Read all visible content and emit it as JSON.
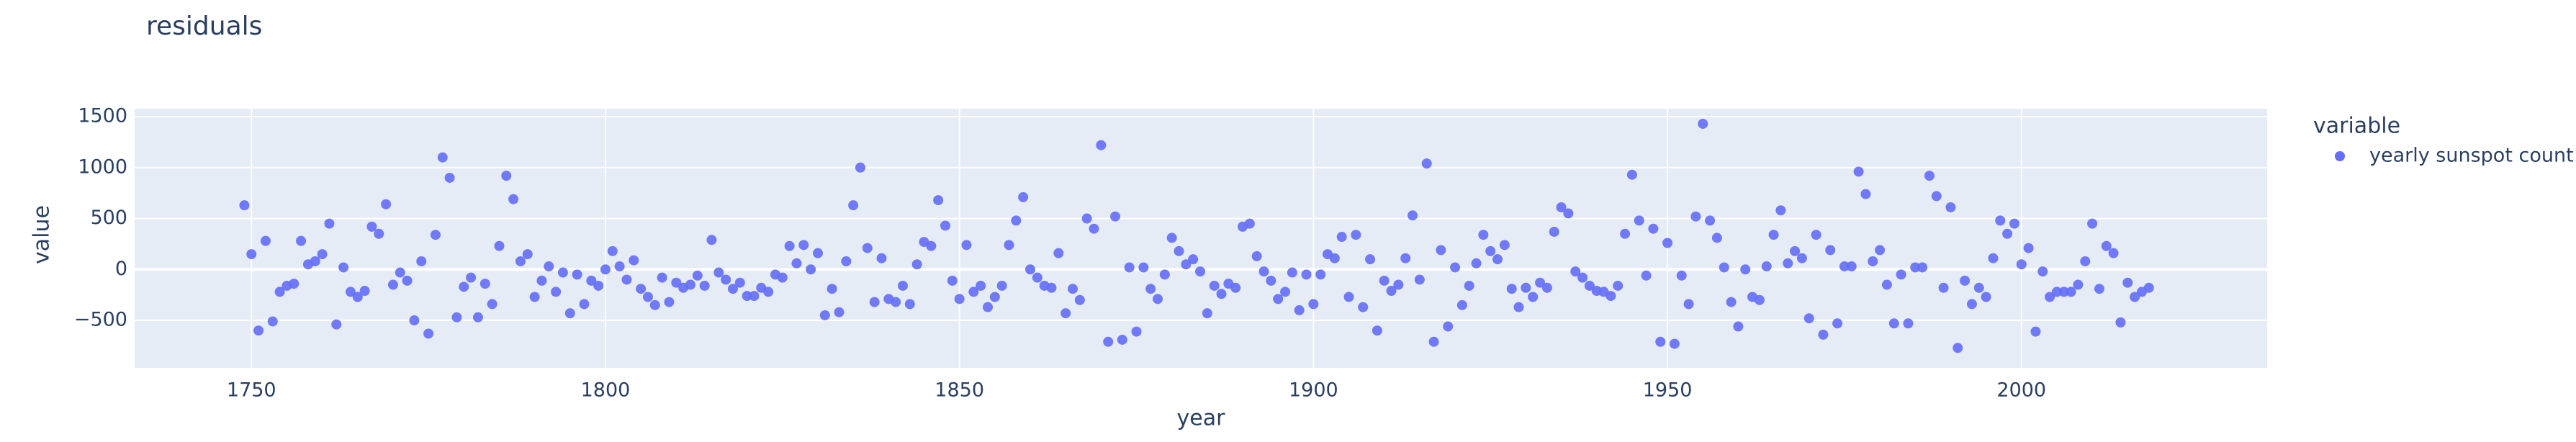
{
  "chart_data": {
    "type": "scatter",
    "title": "residuals",
    "x_label": "year",
    "y_label": "value",
    "legend_title": "variable",
    "x": [
      1749,
      1750,
      1751,
      1752,
      1753,
      1754,
      1755,
      1756,
      1757,
      1758,
      1759,
      1760,
      1761,
      1762,
      1763,
      1764,
      1765,
      1766,
      1767,
      1768,
      1769,
      1770,
      1771,
      1772,
      1773,
      1774,
      1775,
      1776,
      1777,
      1778,
      1779,
      1780,
      1781,
      1782,
      1783,
      1784,
      1785,
      1786,
      1787,
      1788,
      1789,
      1790,
      1791,
      1792,
      1793,
      1794,
      1795,
      1796,
      1797,
      1798,
      1799,
      1800,
      1801,
      1802,
      1803,
      1804,
      1805,
      1806,
      1807,
      1808,
      1809,
      1810,
      1811,
      1812,
      1813,
      1814,
      1815,
      1816,
      1817,
      1818,
      1819,
      1820,
      1821,
      1822,
      1823,
      1824,
      1825,
      1826,
      1827,
      1828,
      1829,
      1830,
      1831,
      1832,
      1833,
      1834,
      1835,
      1836,
      1837,
      1838,
      1839,
      1840,
      1841,
      1842,
      1843,
      1844,
      1845,
      1846,
      1847,
      1848,
      1849,
      1850,
      1851,
      1852,
      1853,
      1854,
      1855,
      1856,
      1857,
      1858,
      1859,
      1860,
      1861,
      1862,
      1863,
      1864,
      1865,
      1866,
      1867,
      1868,
      1869,
      1870,
      1871,
      1872,
      1873,
      1874,
      1875,
      1876,
      1877,
      1878,
      1879,
      1880,
      1881,
      1882,
      1883,
      1884,
      1885,
      1886,
      1887,
      1888,
      1889,
      1890,
      1891,
      1892,
      1893,
      1894,
      1895,
      1896,
      1897,
      1898,
      1899,
      1900,
      1901,
      1902,
      1903,
      1904,
      1905,
      1906,
      1907,
      1908,
      1909,
      1910,
      1911,
      1912,
      1913,
      1914,
      1915,
      1916,
      1917,
      1918,
      1919,
      1920,
      1921,
      1922,
      1923,
      1924,
      1925,
      1926,
      1927,
      1928,
      1929,
      1930,
      1931,
      1932,
      1933,
      1934,
      1935,
      1936,
      1937,
      1938,
      1939,
      1940,
      1941,
      1942,
      1943,
      1944,
      1945,
      1946,
      1947,
      1948,
      1949,
      1950,
      1951,
      1952,
      1953,
      1954,
      1955,
      1956,
      1957,
      1958,
      1959,
      1960,
      1961,
      1962,
      1963,
      1964,
      1965,
      1966,
      1967,
      1968,
      1969,
      1970,
      1971,
      1972,
      1973,
      1974,
      1975,
      1976,
      1977,
      1978,
      1979,
      1980,
      1981,
      1982,
      1983,
      1984,
      1985,
      1986,
      1987,
      1988,
      1989,
      1990,
      1991,
      1992,
      1993,
      1994,
      1995,
      1996,
      1997,
      1998,
      1999,
      2000,
      2001,
      2002,
      2003,
      2004,
      2005,
      2006,
      2007,
      2008,
      2009,
      2010,
      2011,
      2012,
      2013,
      2014,
      2015,
      2016,
      2017,
      2018
    ],
    "series": [
      {
        "name": "yearly sunspot count",
        "color": "#636efa",
        "values": [
          630,
          150,
          -600,
          280,
          -510,
          -220,
          -160,
          -140,
          280,
          50,
          80,
          150,
          450,
          -540,
          20,
          -220,
          -270,
          -210,
          420,
          350,
          640,
          -150,
          -30,
          -110,
          -500,
          80,
          -630,
          340,
          1100,
          900,
          -470,
          -170,
          -80,
          -470,
          -140,
          -340,
          230,
          920,
          690,
          80,
          150,
          -270,
          -110,
          30,
          -220,
          -30,
          -430,
          -50,
          -340,
          -110,
          -160,
          0,
          180,
          30,
          -100,
          90,
          -190,
          -270,
          -350,
          -80,
          -320,
          -130,
          -180,
          -150,
          -60,
          -160,
          290,
          -30,
          -100,
          -190,
          -130,
          -260,
          -260,
          -180,
          -220,
          -50,
          -80,
          230,
          60,
          240,
          0,
          160,
          -450,
          -190,
          -420,
          80,
          630,
          1000,
          210,
          -320,
          110,
          -290,
          -320,
          -160,
          -340,
          50,
          270,
          230,
          680,
          430,
          -110,
          -290,
          240,
          -220,
          -160,
          -370,
          -270,
          -160,
          240,
          480,
          710,
          0,
          -80,
          -160,
          -180,
          160,
          -430,
          -190,
          -300,
          500,
          400,
          1220,
          -710,
          520,
          -690,
          20,
          -610,
          20,
          -190,
          -290,
          -50,
          310,
          180,
          50,
          100,
          -20,
          -430,
          -160,
          -240,
          -140,
          -180,
          420,
          450,
          130,
          -20,
          -110,
          -290,
          -220,
          -30,
          -400,
          -50,
          -340,
          -50,
          150,
          110,
          320,
          -270,
          340,
          -370,
          100,
          -600,
          -110,
          -210,
          -150,
          110,
          530,
          -100,
          1040,
          -710,
          190,
          -560,
          20,
          -350,
          -160,
          60,
          340,
          180,
          100,
          240,
          -190,
          -370,
          -180,
          -270,
          -130,
          -180,
          370,
          610,
          550,
          -20,
          -80,
          -160,
          -210,
          -220,
          -260,
          -160,
          350,
          930,
          480,
          -60,
          400,
          -710,
          260,
          -730,
          -60,
          -340,
          520,
          1430,
          480,
          310,
          20,
          -320,
          -560,
          0,
          -270,
          -300,
          30,
          340,
          580,
          60,
          180,
          110,
          -480,
          340,
          -640,
          190,
          -530,
          30,
          30,
          960,
          740,
          80,
          190,
          -150,
          -530,
          -50,
          -530,
          20,
          20,
          920,
          720,
          -180,
          610,
          -770,
          -110,
          -340,
          -180,
          -270,
          110,
          480,
          350,
          450,
          50,
          210,
          -610,
          -20,
          -270,
          -220,
          -220,
          -220,
          -150,
          80,
          450,
          -190,
          230,
          160,
          -520,
          -130,
          -270,
          -220,
          -180
        ]
      }
    ],
    "xlim": [
      1733.5,
      2034.7
    ],
    "xticks": [
      1750,
      1800,
      1850,
      1900,
      1950,
      2000
    ],
    "ylim": [
      -966,
      1578
    ],
    "yticks": [
      {
        "value": -500,
        "label": "−500"
      },
      0,
      500,
      1000,
      1500
    ],
    "grid": true,
    "legend": "right"
  }
}
